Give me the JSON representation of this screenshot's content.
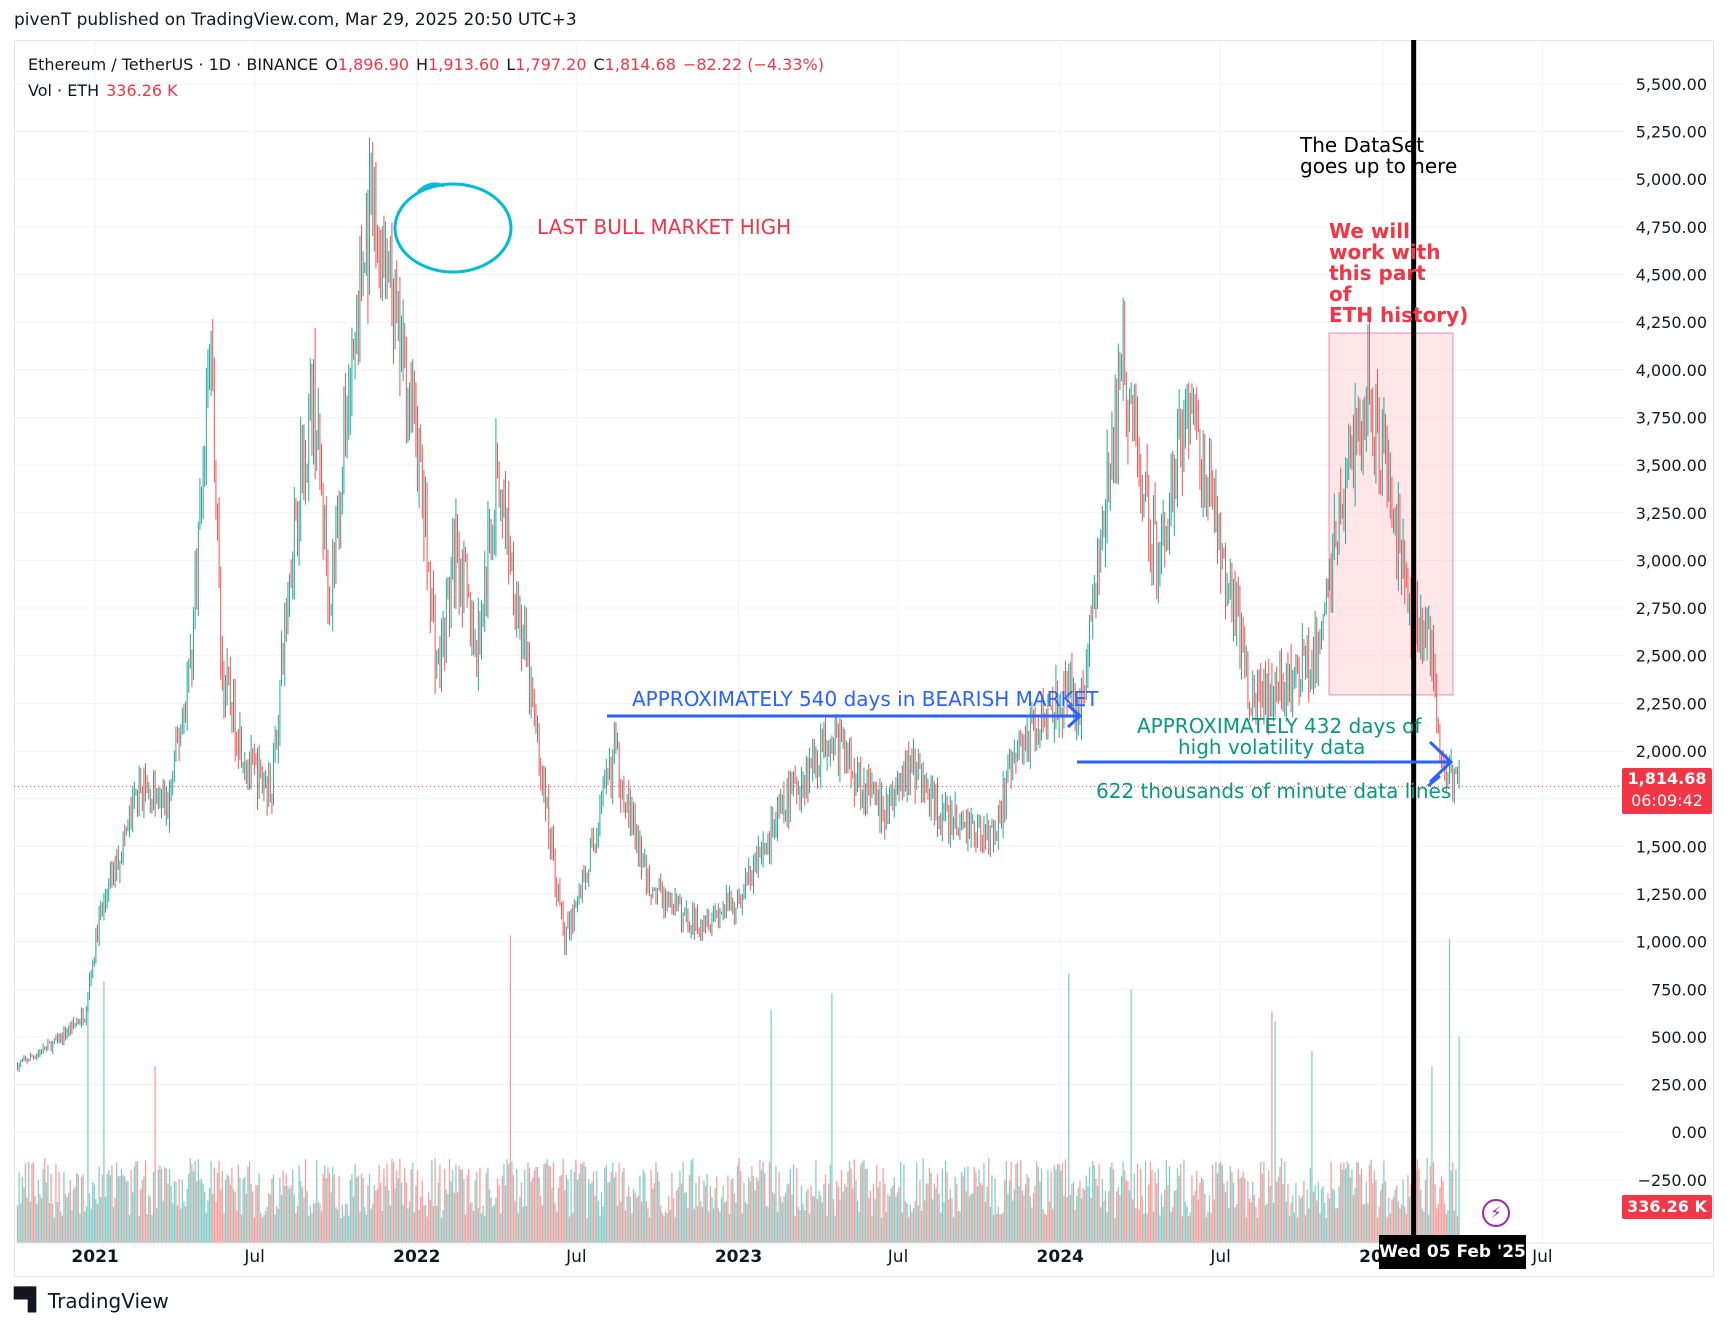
{
  "header": {
    "publish_line": "pivenT published on TradingView.com, Mar 29, 2025 20:50 UTC+3"
  },
  "legend": {
    "symbol": "Ethereum / TetherUS · 1D · BINANCE",
    "open_label": "O",
    "open": "1,896.90",
    "high_label": "H",
    "high": "1,913.60",
    "low_label": "L",
    "low": "1,797.20",
    "close_label": "C",
    "close": "1,814.68",
    "change": "−82.22 (−4.33%)",
    "volume_label": "Vol · ETH",
    "volume": "336.26 K"
  },
  "annotations": {
    "bull_high": "LAST BULL MARKET HIGH",
    "dataset_line1": "The DataSet",
    "dataset_line2": "goes up to here",
    "work_lines": [
      "We will",
      "work with",
      "this part",
      "of",
      "ETH history)"
    ],
    "bearish": "APPROXIMATELY 540 days in BEARISH MARKET",
    "volatility_line1": "APPROXIMATELY 432 days of",
    "volatility_line2": "high volatility data",
    "minute_lines": "622 thousands of minute data lines"
  },
  "price_label": {
    "value": "1,814.68",
    "countdown": "06:09:42"
  },
  "volume_label_badge": "336.26 K",
  "crosshair_date": "Wed 05 Feb '25",
  "footer": {
    "brand": "TradingView"
  },
  "colors": {
    "up": "#26a69a",
    "down": "#ef5350",
    "annotation_red": "#f23645",
    "annotation_blue": "#2962ff",
    "annotation_green": "#089981",
    "circle": "#00bcd4"
  },
  "chart_data": {
    "type": "candlestick",
    "symbol": "Ethereum / TetherUS",
    "interval": "1D",
    "exchange": "BINANCE",
    "y_axis_ticks": [
      "5,500.00",
      "5,250.00",
      "5,000.00",
      "4,750.00",
      "4,500.00",
      "4,250.00",
      "4,000.00",
      "3,750.00",
      "3,500.00",
      "3,250.00",
      "3,000.00",
      "2,750.00",
      "2,500.00",
      "2,250.00",
      "2,000.00",
      "1,750.00",
      "1,500.00",
      "1,250.00",
      "1,000.00",
      "750.00",
      "500.00",
      "250.00",
      "0.00",
      "−250.00"
    ],
    "ylim": [
      -250,
      5500
    ],
    "x_axis_ticks": [
      "2021",
      "Jul",
      "2022",
      "Jul",
      "2023",
      "Jul",
      "2024",
      "Jul",
      "2025",
      "Jul"
    ],
    "last_close": 1814.68,
    "close_path": [
      [
        "2020-10-05",
        350
      ],
      [
        "2020-11-20",
        480
      ],
      [
        "2020-12-20",
        620
      ],
      [
        "2021-01-05",
        1100
      ],
      [
        "2021-02-20",
        1800
      ],
      [
        "2021-03-25",
        1700
      ],
      [
        "2021-04-20",
        2500
      ],
      [
        "2021-05-12",
        4200
      ],
      [
        "2021-05-25",
        2400
      ],
      [
        "2021-06-25",
        1900
      ],
      [
        "2021-07-20",
        1800
      ],
      [
        "2021-08-15",
        3200
      ],
      [
        "2021-09-05",
        3900
      ],
      [
        "2021-09-25",
        2800
      ],
      [
        "2021-10-20",
        4100
      ],
      [
        "2021-11-10",
        4800
      ],
      [
        "2021-12-05",
        4300
      ],
      [
        "2021-12-31",
        3700
      ],
      [
        "2022-01-25",
        2400
      ],
      [
        "2022-02-15",
        3100
      ],
      [
        "2022-03-10",
        2500
      ],
      [
        "2022-04-03",
        3500
      ],
      [
        "2022-05-10",
        2300
      ],
      [
        "2022-06-18",
        1000
      ],
      [
        "2022-07-20",
        1500
      ],
      [
        "2022-08-13",
        2000
      ],
      [
        "2022-09-20",
        1300
      ],
      [
        "2022-11-09",
        1100
      ],
      [
        "2022-12-31",
        1200
      ],
      [
        "2023-02-15",
        1650
      ],
      [
        "2023-04-15",
        2100
      ],
      [
        "2023-06-15",
        1650
      ],
      [
        "2023-07-15",
        1950
      ],
      [
        "2023-08-20",
        1650
      ],
      [
        "2023-10-15",
        1550
      ],
      [
        "2023-11-15",
        2000
      ],
      [
        "2023-12-25",
        2300
      ],
      [
        "2024-01-25",
        2250
      ],
      [
        "2024-03-12",
        4000
      ],
      [
        "2024-04-20",
        3000
      ],
      [
        "2024-05-25",
        3850
      ],
      [
        "2024-07-05",
        3000
      ],
      [
        "2024-08-05",
        2300
      ],
      [
        "2024-09-10",
        2300
      ],
      [
        "2024-10-20",
        2550
      ],
      [
        "2024-11-15",
        3300
      ],
      [
        "2024-12-15",
        3900
      ],
      [
        "2025-01-10",
        3300
      ],
      [
        "2025-02-03",
        2700
      ],
      [
        "2025-02-20",
        2700
      ],
      [
        "2025-03-11",
        1850
      ],
      [
        "2025-03-29",
        1814.68
      ]
    ],
    "annotation_regions": {
      "bearish_market_days": 540,
      "high_volatility_days": 432,
      "minute_data_lines": "622 thousands",
      "dataset_end": "2025-02-05"
    }
  }
}
